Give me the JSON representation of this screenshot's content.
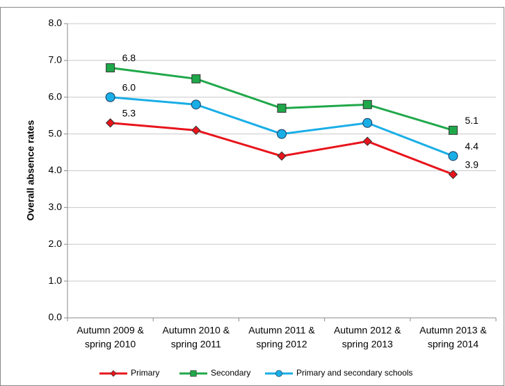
{
  "chart_data": {
    "type": "line",
    "y_label": "Overall absence rates",
    "categories": [
      [
        "Autumn 2009 &",
        "spring 2010"
      ],
      [
        "Autumn 2010 &",
        "spring 2011"
      ],
      [
        "Autumn 2011 &",
        "spring 2012"
      ],
      [
        "Autumn 2012 &",
        "spring 2013"
      ],
      [
        "Autumn 2013 &",
        "spring 2014"
      ]
    ],
    "series": [
      {
        "name": "Primary",
        "color": "#e8141b",
        "marker": "diamond",
        "values": [
          5.3,
          5.1,
          4.4,
          4.8,
          3.9
        ],
        "value_labels": [
          "5.3",
          null,
          null,
          null,
          "3.9"
        ]
      },
      {
        "name": "Secondary",
        "color": "#1fa84a",
        "marker": "square",
        "values": [
          6.8,
          6.5,
          5.7,
          5.8,
          5.1
        ],
        "value_labels": [
          "6.8",
          null,
          null,
          null,
          "5.1"
        ]
      },
      {
        "name": "Primary and secondary schools",
        "color": "#1aaee6",
        "marker": "circle",
        "values": [
          6.0,
          5.8,
          5.0,
          5.3,
          4.4
        ],
        "value_labels": [
          "6.0",
          null,
          null,
          null,
          "4.4"
        ]
      }
    ],
    "ylim": [
      0,
      8
    ],
    "yticks": [
      {
        "value": 0,
        "label": "0.0"
      },
      {
        "value": 1,
        "label": "1.0"
      },
      {
        "value": 2,
        "label": "2.0"
      },
      {
        "value": 3,
        "label": "3.0"
      },
      {
        "value": 4,
        "label": "4.0"
      },
      {
        "value": 5,
        "label": "5.0"
      },
      {
        "value": 6,
        "label": "6.0"
      },
      {
        "value": 7,
        "label": "7.0"
      },
      {
        "value": 8,
        "label": "8.0"
      }
    ],
    "grid": true,
    "legend": "bottom"
  }
}
